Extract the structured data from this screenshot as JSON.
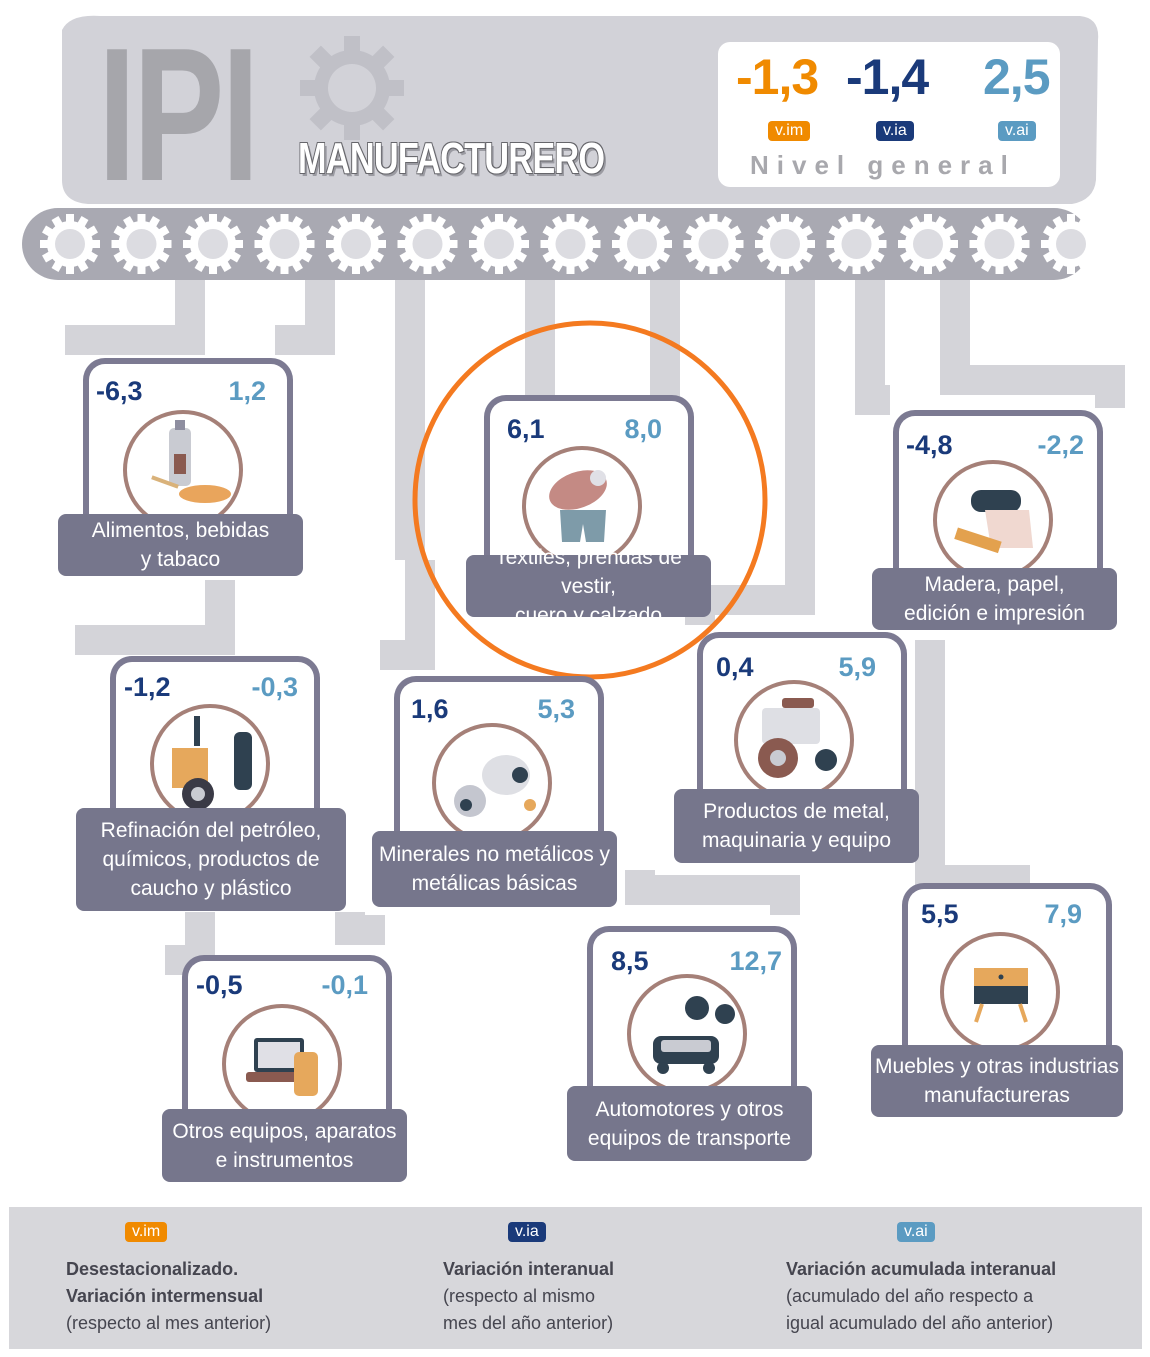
{
  "header": {
    "title": "IPI",
    "subtitle": "MANUFACTURERO",
    "general": {
      "vim": "-1,3",
      "via": "-1,4",
      "vai": "2,5",
      "label": "Nivel general"
    }
  },
  "badges": {
    "vim": "v.im",
    "via": "v.ia",
    "vai": "v.ai"
  },
  "sectors": [
    {
      "name": "alimentos",
      "via": "-6,3",
      "vai": "1,2",
      "label": [
        "Alimentos, bebidas",
        "y tabaco"
      ]
    },
    {
      "name": "textiles",
      "via": "6,1",
      "vai": "8,0",
      "label": [
        "Textiles, prendas de vestir,",
        "cuero y calzado"
      ]
    },
    {
      "name": "madera",
      "via": "-4,8",
      "vai": "-2,2",
      "label": [
        "Madera, papel,",
        "edición e impresión"
      ]
    },
    {
      "name": "refinacion",
      "via": "-1,2",
      "vai": "-0,3",
      "label": [
        "Refinación del petróleo,",
        "químicos, productos de",
        "caucho y plástico"
      ]
    },
    {
      "name": "minerales",
      "via": "1,6",
      "vai": "5,3",
      "label": [
        "Minerales no metálicos y",
        "metálicas básicas"
      ]
    },
    {
      "name": "metal",
      "via": "0,4",
      "vai": "5,9",
      "label": [
        "Productos de metal,",
        "maquinaria y equipo"
      ]
    },
    {
      "name": "otros-equipos",
      "via": "-0,5",
      "vai": "-0,1",
      "label": [
        "Otros equipos, aparatos",
        "e instrumentos"
      ]
    },
    {
      "name": "automotores",
      "via": "8,5",
      "vai": "12,7",
      "label": [
        "Automotores y otros",
        "equipos de transporte"
      ]
    },
    {
      "name": "muebles",
      "via": "5,5",
      "vai": "7,9",
      "label": [
        "Muebles y otras industrias",
        "manufactureras"
      ]
    }
  ],
  "legend": {
    "vim": {
      "badge": "v.im",
      "lines": [
        "Desestacionalizado.",
        "Variación intermensual"
      ],
      "sub": [
        "(respecto al mes anterior)"
      ]
    },
    "via": {
      "badge": "v.ia",
      "lines": [
        "Variación interanual"
      ],
      "sub": [
        "(respecto al mismo",
        "mes del año anterior)"
      ]
    },
    "vai": {
      "badge": "v.ai",
      "lines": [
        "Variación acumulada interanual"
      ],
      "sub": [
        "(acumulado del año respecto a",
        "igual acumulado del año anterior)"
      ]
    }
  },
  "colors": {
    "vim": "#f08a00",
    "via": "#1a3a7a",
    "vai": "#5b9bc2",
    "highlight": "#f47a20",
    "band": "#c9c9cf",
    "label": "#76768c"
  }
}
